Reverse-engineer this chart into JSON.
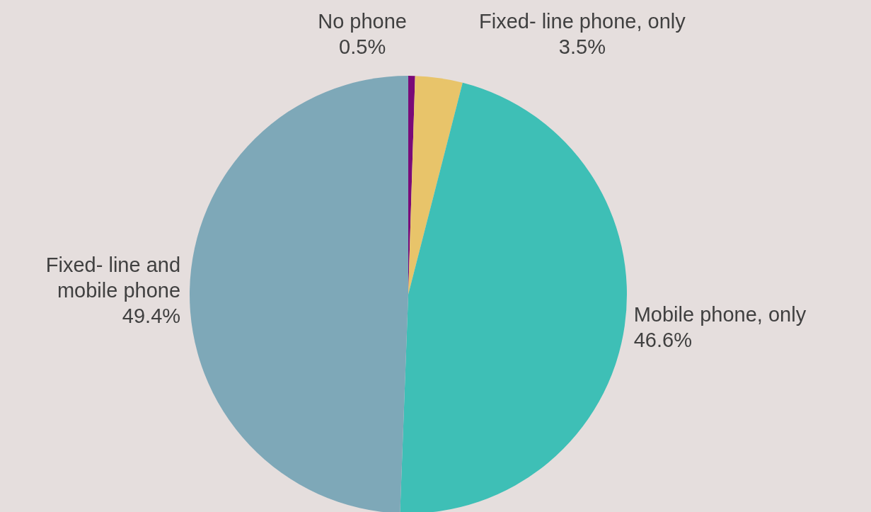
{
  "chart_data": {
    "type": "pie",
    "categories": [
      "No phone",
      "Fixed- line phone, only",
      "Mobile phone, only",
      "Fixed- line and\nmobile phone"
    ],
    "values": [
      0.5,
      3.5,
      46.6,
      49.4
    ],
    "colors": [
      "#7a0a78",
      "#e8c46a",
      "#3ebfb6",
      "#7ea8b8"
    ],
    "value_labels": [
      "0.5%",
      "3.5%",
      "46.6%",
      "49.4%"
    ],
    "legend": false
  }
}
